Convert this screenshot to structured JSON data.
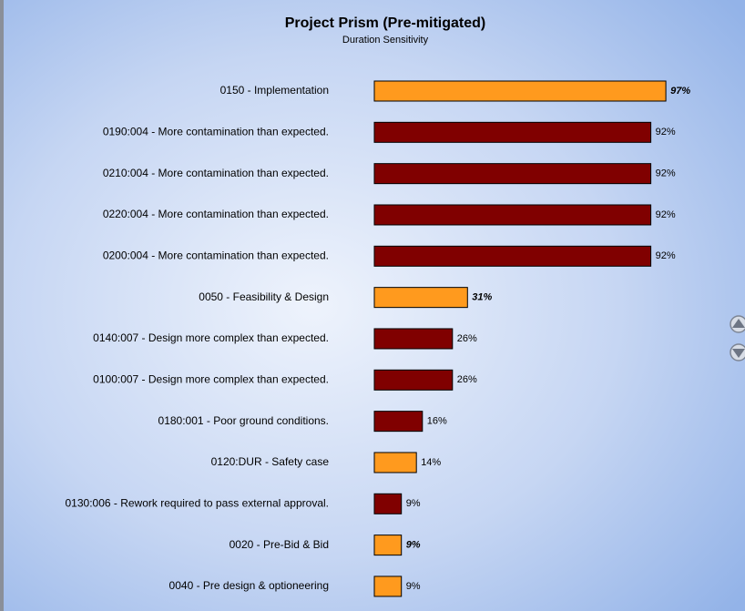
{
  "chart_data": {
    "type": "bar",
    "orientation": "horizontal",
    "title": "Project Prism (Pre-mitigated)",
    "subtitle": "Duration Sensitivity",
    "categories": [
      "0150 - Implementation",
      "0190:004 - More contamination than expected.",
      "0210:004 - More contamination than expected.",
      "0220:004 - More contamination than expected.",
      "0200:004 - More contamination than expected.",
      "0050 - Feasibility & Design",
      "0140:007 - Design more complex than expected.",
      "0100:007 - Design more complex than expected.",
      "0180:001 - Poor ground conditions.",
      "0120:DUR - Safety case",
      "0130:006 - Rework required to pass external approval.",
      "0020 - Pre-Bid & Bid",
      "0040 - Pre design & optioneering"
    ],
    "values": [
      97,
      92,
      92,
      92,
      92,
      31,
      26,
      26,
      16,
      14,
      9,
      9,
      9
    ],
    "value_labels": [
      "97%",
      "92%",
      "92%",
      "92%",
      "92%",
      "31%",
      "26%",
      "26%",
      "16%",
      "14%",
      "9%",
      "9%",
      "9%"
    ],
    "colors": [
      "#ff9a1e",
      "#800000",
      "#800000",
      "#800000",
      "#800000",
      "#ff9a1e",
      "#800000",
      "#800000",
      "#800000",
      "#ff9a1e",
      "#800000",
      "#ff9a1e",
      "#ff9a1e"
    ],
    "bold_labels": [
      true,
      false,
      false,
      false,
      false,
      true,
      false,
      false,
      false,
      false,
      false,
      true,
      false
    ]
  }
}
